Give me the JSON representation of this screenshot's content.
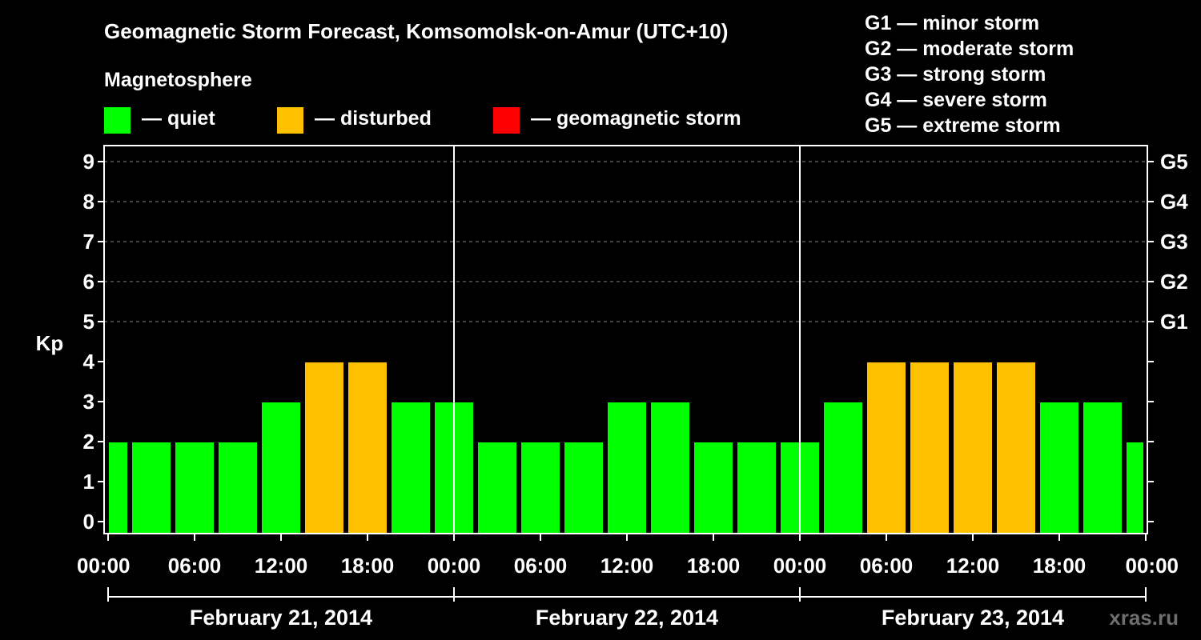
{
  "chart_data": {
    "type": "bar",
    "title": "Geomagnetic Storm Forecast, Komsomolsk-on-Amur (UTC+10)",
    "ylabel": "Kp",
    "ylim": [
      0,
      9
    ],
    "y_ticks": [
      "0",
      "1",
      "2",
      "3",
      "4",
      "5",
      "6",
      "7",
      "8",
      "9"
    ],
    "right_axis_labels": [
      {
        "kp": 5,
        "label": "G1"
      },
      {
        "kp": 6,
        "label": "G2"
      },
      {
        "kp": 7,
        "label": "G3"
      },
      {
        "kp": 8,
        "label": "G4"
      },
      {
        "kp": 9,
        "label": "G5"
      }
    ],
    "x_tick_labels": [
      "00:00",
      "06:00",
      "12:00",
      "18:00",
      "00:00",
      "06:00",
      "12:00",
      "18:00",
      "00:00",
      "06:00",
      "12:00",
      "18:00",
      "00:00"
    ],
    "day_labels": [
      "February 21, 2014",
      "February 22, 2014",
      "February 23, 2014"
    ],
    "interval_hours": 3,
    "values": [
      2,
      2,
      2,
      2,
      3,
      4,
      4,
      3,
      3,
      2,
      2,
      2,
      3,
      3,
      2,
      2,
      2,
      3,
      4,
      4,
      4,
      4,
      3,
      3,
      2
    ],
    "bar_categories": [
      "quiet",
      "quiet",
      "quiet",
      "quiet",
      "quiet",
      "disturbed",
      "disturbed",
      "quiet",
      "quiet",
      "quiet",
      "quiet",
      "quiet",
      "quiet",
      "quiet",
      "quiet",
      "quiet",
      "quiet",
      "quiet",
      "disturbed",
      "disturbed",
      "disturbed",
      "disturbed",
      "quiet",
      "quiet",
      "quiet"
    ],
    "colors": {
      "quiet": "#00ff00",
      "disturbed": "#ffc000",
      "storm": "#ff0000"
    }
  },
  "legend": {
    "heading": "Magnetosphere",
    "items": [
      {
        "key": "quiet",
        "label": "— quiet",
        "color": "#00ff00"
      },
      {
        "key": "disturbed",
        "label": "— disturbed",
        "color": "#ffc000"
      },
      {
        "key": "storm",
        "label": "— geomagnetic storm",
        "color": "#ff0000"
      }
    ]
  },
  "storm_scale": [
    "G1 — minor storm",
    "G2 — moderate storm",
    "G3 — strong storm",
    "G4 — severe storm",
    "G5 — extreme storm"
  ],
  "watermark": "xras.ru"
}
